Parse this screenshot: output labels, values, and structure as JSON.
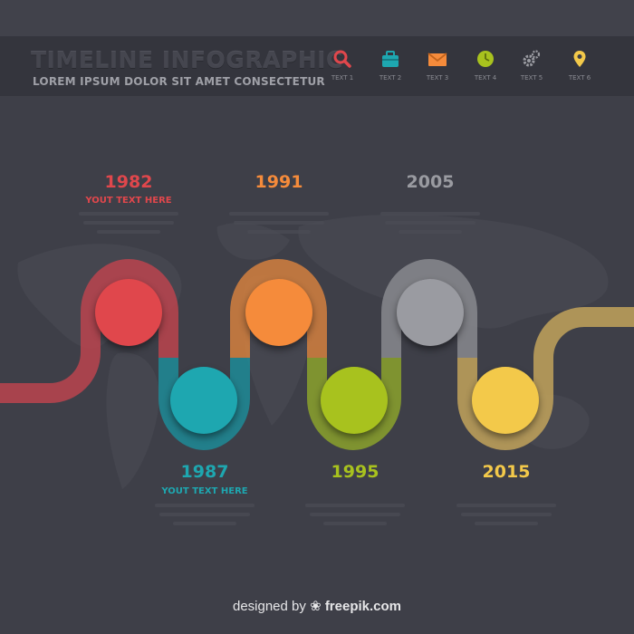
{
  "header": {
    "title": "TIMELINE INFOGRAPHIC",
    "subtitle": "LOREM IPSUM DOLOR SIT AMET CONSECTETUR",
    "icons": [
      {
        "name": "search-icon",
        "label": "TEXT 1",
        "color": "#e0474c"
      },
      {
        "name": "briefcase-icon",
        "label": "TEXT 2",
        "color": "#1ea7b0"
      },
      {
        "name": "envelope-icon",
        "label": "TEXT 3",
        "color": "#f58b3b"
      },
      {
        "name": "clock-icon",
        "label": "TEXT 4",
        "color": "#a8c21e"
      },
      {
        "name": "gears-icon",
        "label": "TEXT 5",
        "color": "#9a9ba1"
      },
      {
        "name": "map-pin-icon",
        "label": "TEXT 6",
        "color": "#f3c94a"
      }
    ]
  },
  "timeline": [
    {
      "year": "1982",
      "subtitle": "YOUT TEXT HERE",
      "color": "#e0474c",
      "track": "#c0444e"
    },
    {
      "year": "1987",
      "subtitle": "YOUT TEXT HERE",
      "color": "#1ea7b0",
      "track": "#1d8e9a"
    },
    {
      "year": "1991",
      "subtitle": "",
      "color": "#f58b3b",
      "track": "#d9833e"
    },
    {
      "year": "1995",
      "subtitle": "",
      "color": "#a8c21e",
      "track": "#8ea62b"
    },
    {
      "year": "2005",
      "subtitle": "",
      "color": "#9a9ba1",
      "track": "#8b8c92"
    },
    {
      "year": "2015",
      "subtitle": "",
      "color": "#f3c94a",
      "track": "#c7a75c"
    }
  ],
  "footer": {
    "designed_by": "designed by",
    "brand": "freepik.com"
  }
}
